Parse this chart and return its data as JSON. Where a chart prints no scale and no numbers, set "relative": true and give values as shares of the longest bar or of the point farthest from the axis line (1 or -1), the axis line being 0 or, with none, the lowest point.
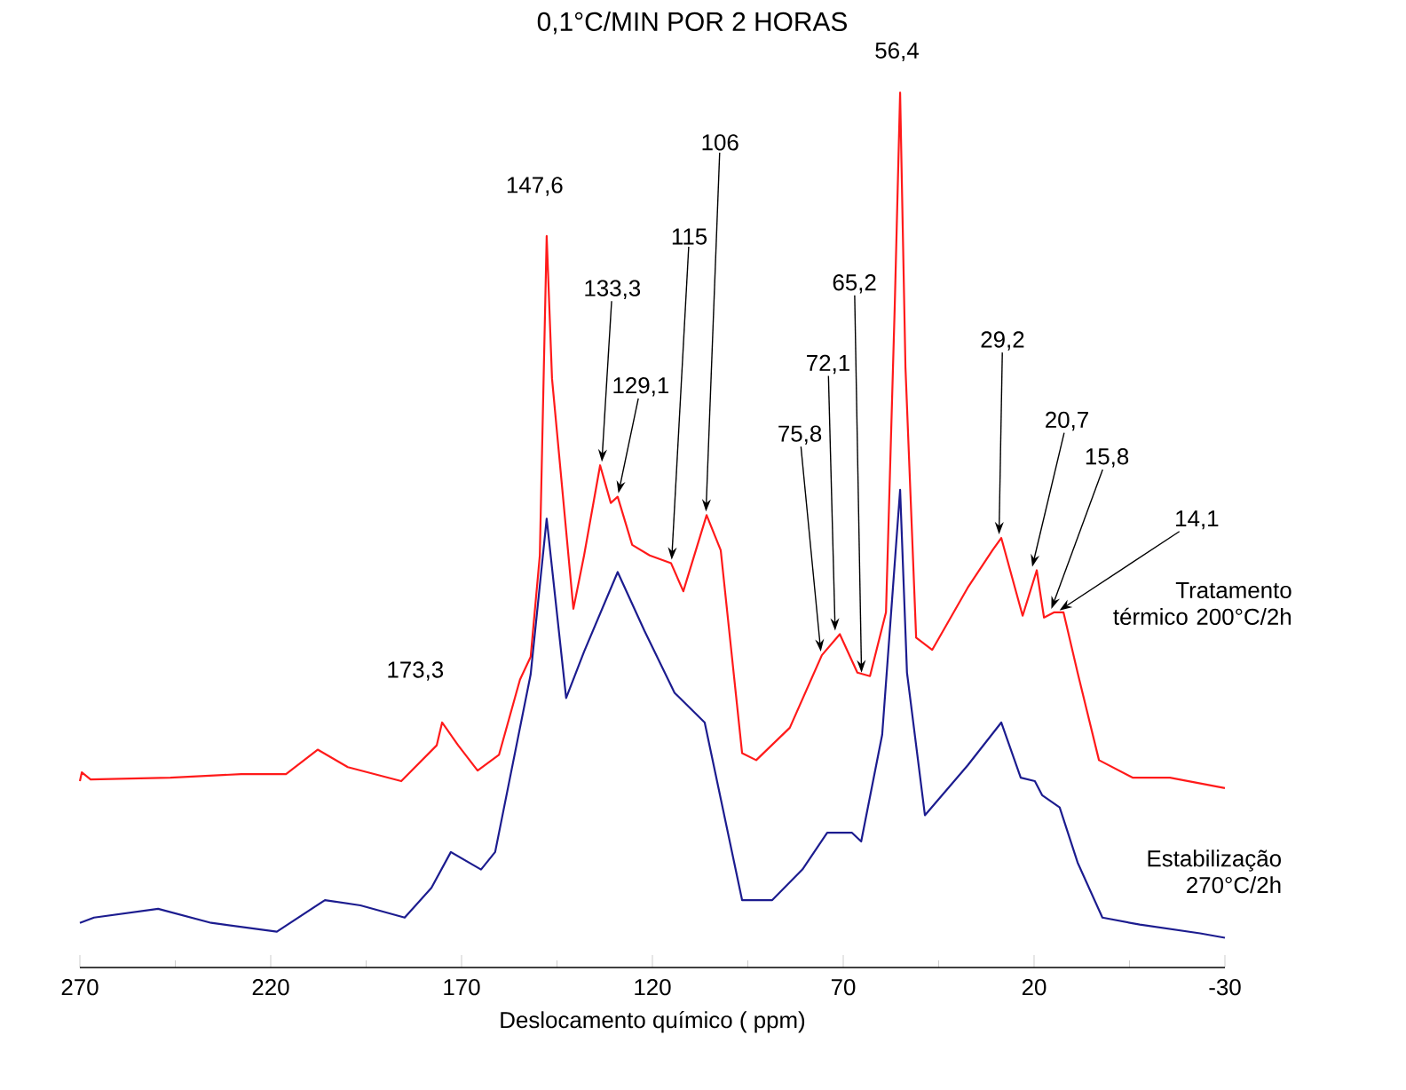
{
  "chart_data": {
    "type": "line",
    "title": "0,1°C/MIN POR 2 HORAS",
    "xlabel": "Deslocamento químico  ( ppm)",
    "relative": true,
    "xlim": [
      270,
      -30
    ],
    "xticks": [
      270,
      220,
      170,
      120,
      70,
      20,
      -30
    ],
    "series": [
      {
        "name": "Tratamento térmico 200°C/2h",
        "color": "#ff1a1a",
        "x": [
          270,
          269.5,
          267.2,
          246.3,
          227.7,
          216.0,
          207.7,
          199.8,
          185.8,
          176.5,
          175.1,
          170.9,
          165.8,
          160.2,
          154.7,
          151.9,
          149.5,
          147.7,
          146.3,
          140.7,
          137.9,
          133.7,
          130.9,
          129.1,
          125.3,
          120.7,
          115.1,
          111.9,
          105.8,
          102.1,
          96.5,
          92.8,
          84.0,
          75.6,
          70.9,
          66.3,
          63.0,
          58.8,
          56.5,
          55.1,
          53.7,
          50.9,
          46.7,
          37.4,
          30.9,
          28.6,
          23.0,
          19.3,
          17.4,
          14.7,
          12.3,
          8.6,
          3.0,
          -5.8,
          -15.6,
          -30
        ],
        "values": [
          0.213,
          0.223,
          0.215,
          0.217,
          0.221,
          0.221,
          0.249,
          0.229,
          0.213,
          0.254,
          0.28,
          0.254,
          0.225,
          0.243,
          0.329,
          0.355,
          0.471,
          0.836,
          0.673,
          0.41,
          0.471,
          0.574,
          0.531,
          0.538,
          0.483,
          0.471,
          0.462,
          0.43,
          0.517,
          0.477,
          0.245,
          0.237,
          0.274,
          0.357,
          0.381,
          0.337,
          0.333,
          0.406,
          0.757,
          1.0,
          0.686,
          0.377,
          0.363,
          0.434,
          0.477,
          0.491,
          0.402,
          0.454,
          0.4,
          0.406,
          0.406,
          0.337,
          0.237,
          0.217,
          0.217,
          0.205
        ]
      },
      {
        "name": "Estabilização 270°C/2h",
        "color": "#1c1c8f",
        "x": [
          270,
          266.3,
          249.5,
          235.6,
          218.4,
          205.8,
          196.5,
          184.9,
          177.9,
          172.8,
          164.9,
          161.2,
          151.9,
          147.7,
          142.6,
          137.9,
          129.1,
          122.1,
          114.2,
          106.3,
          96.5,
          88.6,
          80.7,
          74.2,
          67.7,
          65.3,
          59.8,
          55.1,
          53.3,
          48.6,
          37.4,
          28.6,
          23.5,
          19.8,
          17.9,
          13.3,
          8.6,
          2.1,
          -7.7,
          -23.5,
          -30
        ],
        "values": [
          0.051,
          0.057,
          0.067,
          0.051,
          0.041,
          0.077,
          0.071,
          0.057,
          0.091,
          0.132,
          0.112,
          0.132,
          0.335,
          0.513,
          0.308,
          0.361,
          0.452,
          0.385,
          0.314,
          0.28,
          0.077,
          0.077,
          0.112,
          0.154,
          0.154,
          0.144,
          0.266,
          0.546,
          0.337,
          0.174,
          0.231,
          0.28,
          0.217,
          0.213,
          0.197,
          0.183,
          0.12,
          0.057,
          0.049,
          0.039,
          0.034
        ]
      }
    ],
    "annotations": [
      {
        "text": "147,6",
        "x": 147.6,
        "y": 0.836
      },
      {
        "text": "173,3",
        "x": 173.3,
        "y": 0.28
      },
      {
        "text": "133,3",
        "x": 133.3,
        "y": 0.574
      },
      {
        "text": "129,1",
        "x": 129.1,
        "y": 0.538
      },
      {
        "text": "115",
        "x": 115,
        "y": 0.462
      },
      {
        "text": "106",
        "x": 106,
        "y": 0.517
      },
      {
        "text": "75,8",
        "x": 75.8,
        "y": 0.357
      },
      {
        "text": "72,1",
        "x": 72.1,
        "y": 0.381
      },
      {
        "text": "65,2",
        "x": 65.2,
        "y": 0.333
      },
      {
        "text": "56,4",
        "x": 56.4,
        "y": 1.0
      },
      {
        "text": "29,2",
        "x": 29.2,
        "y": 0.491
      },
      {
        "text": "20,7",
        "x": 20.7,
        "y": 0.454
      },
      {
        "text": "15,8",
        "x": 15.8,
        "y": 0.406
      },
      {
        "text": "14,1",
        "x": 14.1,
        "y": 0.406
      }
    ]
  }
}
